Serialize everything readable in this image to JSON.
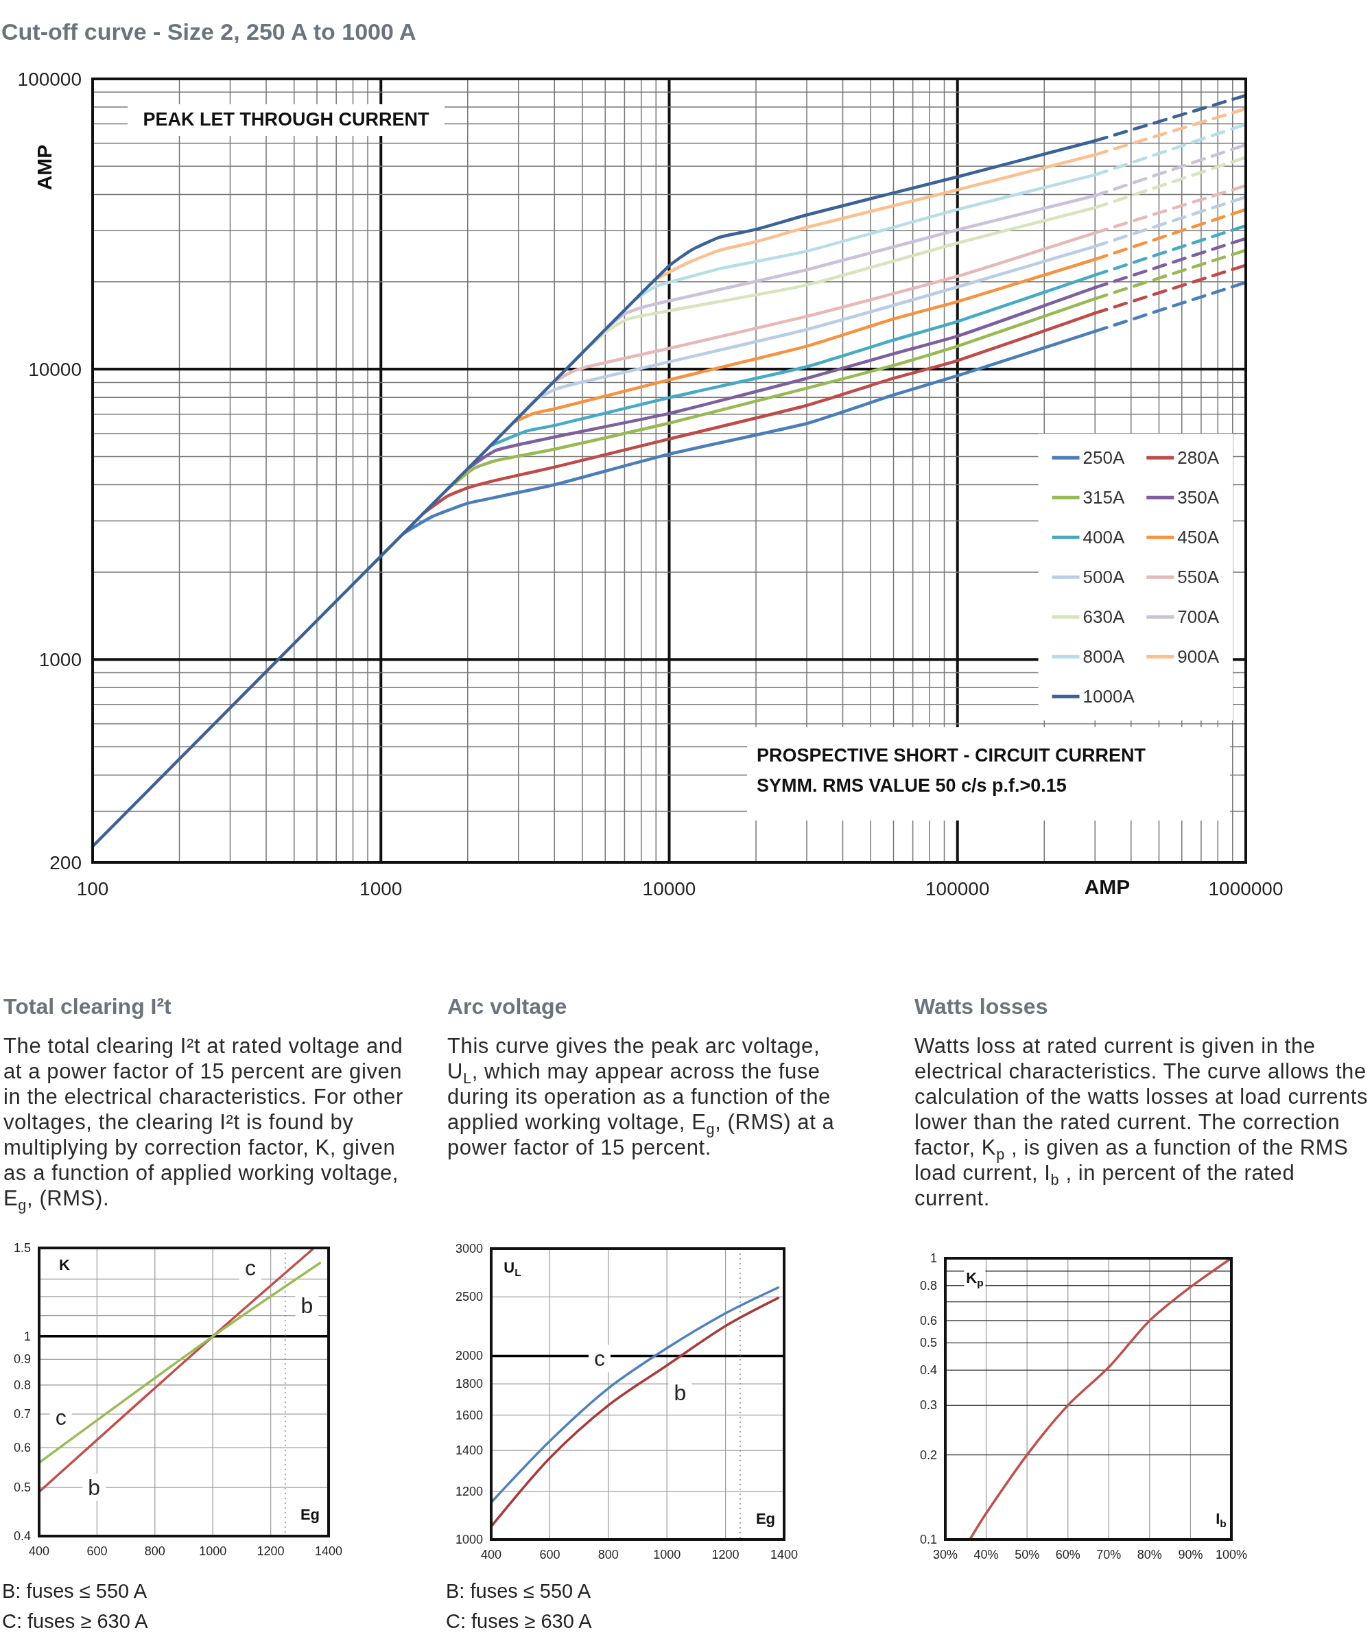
{
  "chart_data": [
    {
      "type": "line",
      "title": "Cut-off curve - Size 2, 250 A to 1000 A",
      "xlabel": "AMP",
      "ylabel": "AMP",
      "log": "xy",
      "xlim": [
        100,
        1000000
      ],
      "ylim": [
        200,
        100000
      ],
      "xticks": [
        100,
        {
          "value": 200,
          "label": null
        },
        {
          "value": 300,
          "label": null
        },
        {
          "value": 400,
          "label": null
        },
        {
          "value": 500,
          "label": null
        },
        {
          "value": 600,
          "label": null
        },
        {
          "value": 700,
          "label": null
        },
        {
          "value": 800,
          "label": null
        },
        {
          "value": 900,
          "label": null
        },
        1000,
        {
          "value": 2000,
          "label": null
        },
        {
          "value": 3000,
          "label": null
        },
        {
          "value": 4000,
          "label": null
        },
        {
          "value": 5000,
          "label": null
        },
        {
          "value": 6000,
          "label": null
        },
        {
          "value": 7000,
          "label": null
        },
        {
          "value": 8000,
          "label": null
        },
        {
          "value": 9000,
          "label": null
        },
        10000,
        {
          "value": 20000,
          "label": null
        },
        {
          "value": 30000,
          "label": null
        },
        {
          "value": 40000,
          "label": null
        },
        {
          "value": 50000,
          "label": null
        },
        {
          "value": 60000,
          "label": null
        },
        {
          "value": 70000,
          "label": null
        },
        {
          "value": 80000,
          "label": null
        },
        {
          "value": 90000,
          "label": null
        },
        100000,
        {
          "value": 200000,
          "label": null
        },
        {
          "value": 300000,
          "label": null
        },
        {
          "value": 400000,
          "label": null
        },
        {
          "value": 500000,
          "label": null
        },
        {
          "value": 600000,
          "label": null
        },
        {
          "value": 700000,
          "label": null
        },
        {
          "value": 800000,
          "label": null
        },
        {
          "value": 900000,
          "label": null
        },
        1000000
      ],
      "yticks": [
        200,
        {
          "value": 300,
          "label": null
        },
        {
          "value": 400,
          "label": null
        },
        {
          "value": 500,
          "label": null
        },
        {
          "value": 600,
          "label": null
        },
        {
          "value": 700,
          "label": null
        },
        {
          "value": 800,
          "label": null
        },
        {
          "value": 900,
          "label": null
        },
        1000,
        {
          "value": 2000,
          "label": null
        },
        {
          "value": 3000,
          "label": null
        },
        {
          "value": 4000,
          "label": null
        },
        {
          "value": 5000,
          "label": null
        },
        {
          "value": 6000,
          "label": null
        },
        {
          "value": 7000,
          "label": null
        },
        {
          "value": 8000,
          "label": null
        },
        {
          "value": 9000,
          "label": null
        },
        10000,
        {
          "value": 20000,
          "label": null
        },
        {
          "value": 30000,
          "label": null
        },
        {
          "value": 40000,
          "label": null
        },
        {
          "value": 50000,
          "label": null
        },
        {
          "value": 60000,
          "label": null
        },
        {
          "value": 70000,
          "label": null
        },
        {
          "value": 80000,
          "label": null
        },
        {
          "value": 90000,
          "label": null
        },
        100000
      ],
      "grid": true,
      "legend": "right",
      "annotations": [
        "PEAK LET THROUGH CURRENT",
        "PROSPECTIVE SHORT - CIRCUIT CURRENT",
        "SYMM. RMS VALUE 50 c/s p.f.>0.15"
      ],
      "series": [
        {
          "name": "250A",
          "color": "#4a7ebb",
          "x": [
            1200,
            1500,
            2000,
            2500,
            4000,
            10000,
            30000,
            60000,
            100000,
            300000
          ],
          "values": [
            2720,
            3100,
            3450,
            3620,
            4000,
            5100,
            6500,
            8150,
            9500,
            13500
          ]
        },
        {
          "color": "#4a7ebb",
          "line_style": "dashed",
          "x": [
            300000,
            1000000
          ],
          "values": [
            13500,
            19900
          ]
        },
        {
          "name": "280A",
          "color": "#be4b48",
          "x": [
            1400,
            1700,
            2000,
            2500,
            4000,
            10000,
            30000,
            60000,
            100000,
            300000
          ],
          "values": [
            3180,
            3650,
            3900,
            4140,
            4600,
            5750,
            7500,
            9300,
            10700,
            15600
          ]
        },
        {
          "color": "#be4b48",
          "line_style": "dashed",
          "x": [
            300000,
            1000000
          ],
          "values": [
            15600,
            22800
          ]
        },
        {
          "name": "315A",
          "color": "#98b954",
          "x": [
            1700,
            2100,
            2500,
            4000,
            10000,
            30000,
            60000,
            100000,
            300000
          ],
          "values": [
            3860,
            4550,
            4840,
            5300,
            6520,
            8600,
            10300,
            12000,
            17500
          ]
        },
        {
          "color": "#98b954",
          "line_style": "dashed",
          "x": [
            300000,
            1000000
          ],
          "values": [
            17500,
            25700
          ]
        },
        {
          "name": "350A",
          "color": "#7d5fa0",
          "x": [
            2000,
            2500,
            4000,
            10000,
            30000,
            60000,
            100000,
            300000
          ],
          "values": [
            4540,
            5250,
            5840,
            7040,
            9300,
            11300,
            13000,
            19100
          ]
        },
        {
          "color": "#7d5fa0",
          "line_style": "dashed",
          "x": [
            300000,
            1000000
          ],
          "values": [
            19100,
            28200
          ]
        },
        {
          "name": "400A",
          "color": "#46aac4",
          "x": [
            2400,
            3200,
            4000,
            10000,
            30000,
            60000,
            100000,
            300000
          ],
          "values": [
            5450,
            6120,
            6400,
            7980,
            10200,
            12600,
            14600,
            21100
          ]
        },
        {
          "color": "#46aac4",
          "line_style": "dashed",
          "x": [
            300000,
            1000000
          ],
          "values": [
            21100,
            31200
          ]
        },
        {
          "name": "450A",
          "color": "#f69240",
          "x": [
            2900,
            3400,
            4000,
            10000,
            30000,
            60000,
            100000,
            300000
          ],
          "values": [
            6580,
            7050,
            7300,
            9190,
            12000,
            14900,
            17100,
            23900
          ]
        },
        {
          "color": "#f69240",
          "line_style": "dashed",
          "x": [
            300000,
            1000000
          ],
          "values": [
            23900,
            35500
          ]
        },
        {
          "name": "500A",
          "color": "#b9cde5",
          "x": [
            3500,
            4000,
            4700,
            10000,
            30000,
            100000,
            300000
          ],
          "values": [
            7950,
            8500,
            8900,
            10600,
            13700,
            19200,
            26500
          ]
        },
        {
          "color": "#b9cde5",
          "line_style": "dashed",
          "x": [
            300000,
            1000000
          ],
          "values": [
            26500,
            39200
          ]
        },
        {
          "name": "550A",
          "color": "#e6b9b8",
          "x": [
            4000,
            4600,
            5200,
            10000,
            30000,
            100000,
            300000
          ],
          "values": [
            9080,
            9800,
            10200,
            11800,
            15200,
            20900,
            29500
          ]
        },
        {
          "color": "#e6b9b8",
          "line_style": "dashed",
          "x": [
            300000,
            1000000
          ],
          "values": [
            29500,
            42900
          ]
        },
        {
          "name": "630A",
          "color": "#d7e4bd",
          "x": [
            5300,
            6200,
            7200,
            10000,
            30000,
            100000,
            300000
          ],
          "values": [
            12000,
            13700,
            14900,
            15900,
            19500,
            27200,
            36000
          ]
        },
        {
          "color": "#d7e4bd",
          "line_style": "dashed",
          "x": [
            300000,
            1000000
          ],
          "values": [
            36000,
            53600
          ]
        },
        {
          "name": "700A",
          "color": "#ccc1da",
          "x": [
            6200,
            7000,
            8000,
            10000,
            30000,
            100000,
            300000
          ],
          "values": [
            14100,
            15500,
            16300,
            17200,
            22000,
            30200,
            39600
          ]
        },
        {
          "color": "#ccc1da",
          "line_style": "dashed",
          "x": [
            300000,
            1000000
          ],
          "values": [
            39600,
            59300
          ]
        },
        {
          "name": "800A",
          "color": "#b7dee8",
          "x": [
            7700,
            9000,
            10000,
            15000,
            30000,
            100000,
            300000
          ],
          "values": [
            17500,
            19300,
            19900,
            22200,
            25500,
            35500,
            46700
          ]
        },
        {
          "color": "#b7dee8",
          "line_style": "dashed",
          "x": [
            300000,
            1000000
          ],
          "values": [
            46700,
            69700
          ]
        },
        {
          "name": "900A",
          "color": "#fac090",
          "x": [
            9000,
            10000,
            12000,
            15000,
            20000,
            30000,
            100000,
            300000
          ],
          "values": [
            20400,
            21600,
            23600,
            25700,
            27500,
            30800,
            41500,
            54800
          ]
        },
        {
          "color": "#fac090",
          "line_style": "dashed",
          "x": [
            300000,
            1000000
          ],
          "values": [
            54800,
            78900
          ]
        },
        {
          "name": "1000A",
          "color": "#3a6297",
          "x": [
            100,
            1000,
            2000,
            5000,
            10000,
            12000,
            15000,
            20000,
            30000,
            100000,
            300000
          ],
          "values": [
            227,
            2270,
            4540,
            11400,
            22700,
            25800,
            28500,
            30300,
            34000,
            46000,
            61200
          ]
        },
        {
          "color": "#3a6297",
          "line_style": "dashed",
          "x": [
            300000,
            1000000
          ],
          "values": [
            61200,
            87700
          ]
        }
      ]
    },
    {
      "type": "line",
      "title": "Total clearing I²t",
      "subtitle": "The total clearing I²t at rated voltage and at a power factor of 15 percent are given in the electrical characteristics. For other voltages, the clearing I²t is found by multiplying by correction factor, K, given as a function of applied working voltage, E$_{g}$, (RMS).",
      "xlabel": "Eg",
      "ylabel": "K",
      "log": "y",
      "xlim": [
        400,
        1400
      ],
      "xticks": [
        400,
        600,
        800,
        1000,
        1200,
        1400
      ],
      "ylim": [
        0.4,
        1.5
      ],
      "yticks": [
        0.4,
        0.5,
        0.6,
        0.7,
        0.8,
        0.9,
        1,
        {
          "value": 1.1,
          "label": null
        },
        {
          "value": 1.2,
          "label": null
        },
        {
          "value": 1.3,
          "label": null
        },
        1.5
      ],
      "grid": true,
      "ref_lines": [
        {
          "axis": "y",
          "value": 1,
          "color": "#000000"
        },
        {
          "axis": "x",
          "value": 1250,
          "line_style": "dotted",
          "color": "#808080"
        }
      ],
      "annotations": [
        {
          "text": "c",
          "x": 1130,
          "y": 1.37
        },
        {
          "text": "b",
          "x": 1325,
          "y": 1.15
        },
        {
          "text": "c",
          "x": 475,
          "y": 0.69
        },
        {
          "text": "b",
          "x": 590,
          "y": 0.5
        },
        "B: fuses ≤ 550 A",
        "C: fuses ≥ 630 A"
      ],
      "series": [
        {
          "color": "#c0504d",
          "x": [
            400,
            1000,
            1350
          ],
          "values": [
            0.49,
            1,
            1.5
          ]
        },
        {
          "color": "#9bbb59",
          "x": [
            400,
            1000,
            1370
          ],
          "values": [
            0.56,
            1,
            1.4
          ]
        }
      ]
    },
    {
      "type": "line",
      "title": "Arc voltage",
      "subtitle": "This curve gives the peak arc voltage, U$_{L}$, which may appear across the fuse during its operation as a function of the applied working voltage, E$_{g}$, (RMS) at a power factor of 15 percent.",
      "xlabel": "Eg",
      "ylabel": "U$_{L}$",
      "log": "y",
      "xlim": [
        400,
        1400
      ],
      "xticks": [
        400,
        600,
        800,
        1000,
        1200,
        1400
      ],
      "ylim": [
        1000,
        3000
      ],
      "yticks": [
        1000,
        1200,
        1400,
        1600,
        1800,
        2000,
        2500,
        3000
      ],
      "grid": true,
      "ref_lines": [
        {
          "axis": "y",
          "value": 2000,
          "color": "#000000"
        },
        {
          "axis": "x",
          "value": 1250,
          "line_style": "dotted",
          "color": "#808080"
        }
      ],
      "annotations": [
        {
          "text": "c",
          "x": 770,
          "y": 1980
        },
        {
          "text": "b",
          "x": 1045,
          "y": 1740
        },
        "B: fuses ≤ 550 A",
        "C: fuses ≥ 630 A"
      ],
      "series": [
        {
          "color": "#4f81bd",
          "x": [
            400,
            600,
            800,
            1000,
            1200,
            1380
          ],
          "values": [
            1150,
            1450,
            1770,
            2060,
            2350,
            2590
          ]
        },
        {
          "color": "#a83a3a",
          "x": [
            400,
            600,
            800,
            1000,
            1200,
            1380
          ],
          "values": [
            1050,
            1360,
            1660,
            1930,
            2240,
            2490
          ]
        }
      ]
    },
    {
      "type": "line",
      "title": "Watts losses",
      "subtitle": "Watts loss at rated current is given in the electrical characteristics. The curve allows the calculation of the watts losses at load currents lower than the rated current. The correction factor, K$_{p}$ , is given as a function of the RMS load current, I$_{b}$ , in percent of the rated current.",
      "xlabel": "I$_{b}$",
      "ylabel": "K$_{p}$",
      "log": "y",
      "xlim": [
        30,
        100
      ],
      "xticks": [
        {
          "value": 30,
          "label": "30%"
        },
        {
          "value": 40,
          "label": "40%"
        },
        {
          "value": 50,
          "label": "50%"
        },
        {
          "value": 60,
          "label": "60%"
        },
        {
          "value": 70,
          "label": "70%"
        },
        {
          "value": 80,
          "label": "80%"
        },
        {
          "value": 90,
          "label": "90%"
        },
        {
          "value": 100,
          "label": "100%"
        }
      ],
      "ylim": [
        0.1,
        1
      ],
      "yticks": [
        0.1,
        0.2,
        0.3,
        0.4,
        0.5,
        0.6,
        {
          "value": 0.7,
          "label": null
        },
        0.8,
        {
          "value": 0.9,
          "label": null
        },
        1
      ],
      "grid": true,
      "series": [
        {
          "color": "#c0504d",
          "x": [
            36,
            40,
            50,
            60,
            70,
            80,
            90,
            100
          ],
          "values": [
            0.1,
            0.124,
            0.2,
            0.3,
            0.41,
            0.6,
            0.79,
            1
          ]
        }
      ]
    }
  ]
}
